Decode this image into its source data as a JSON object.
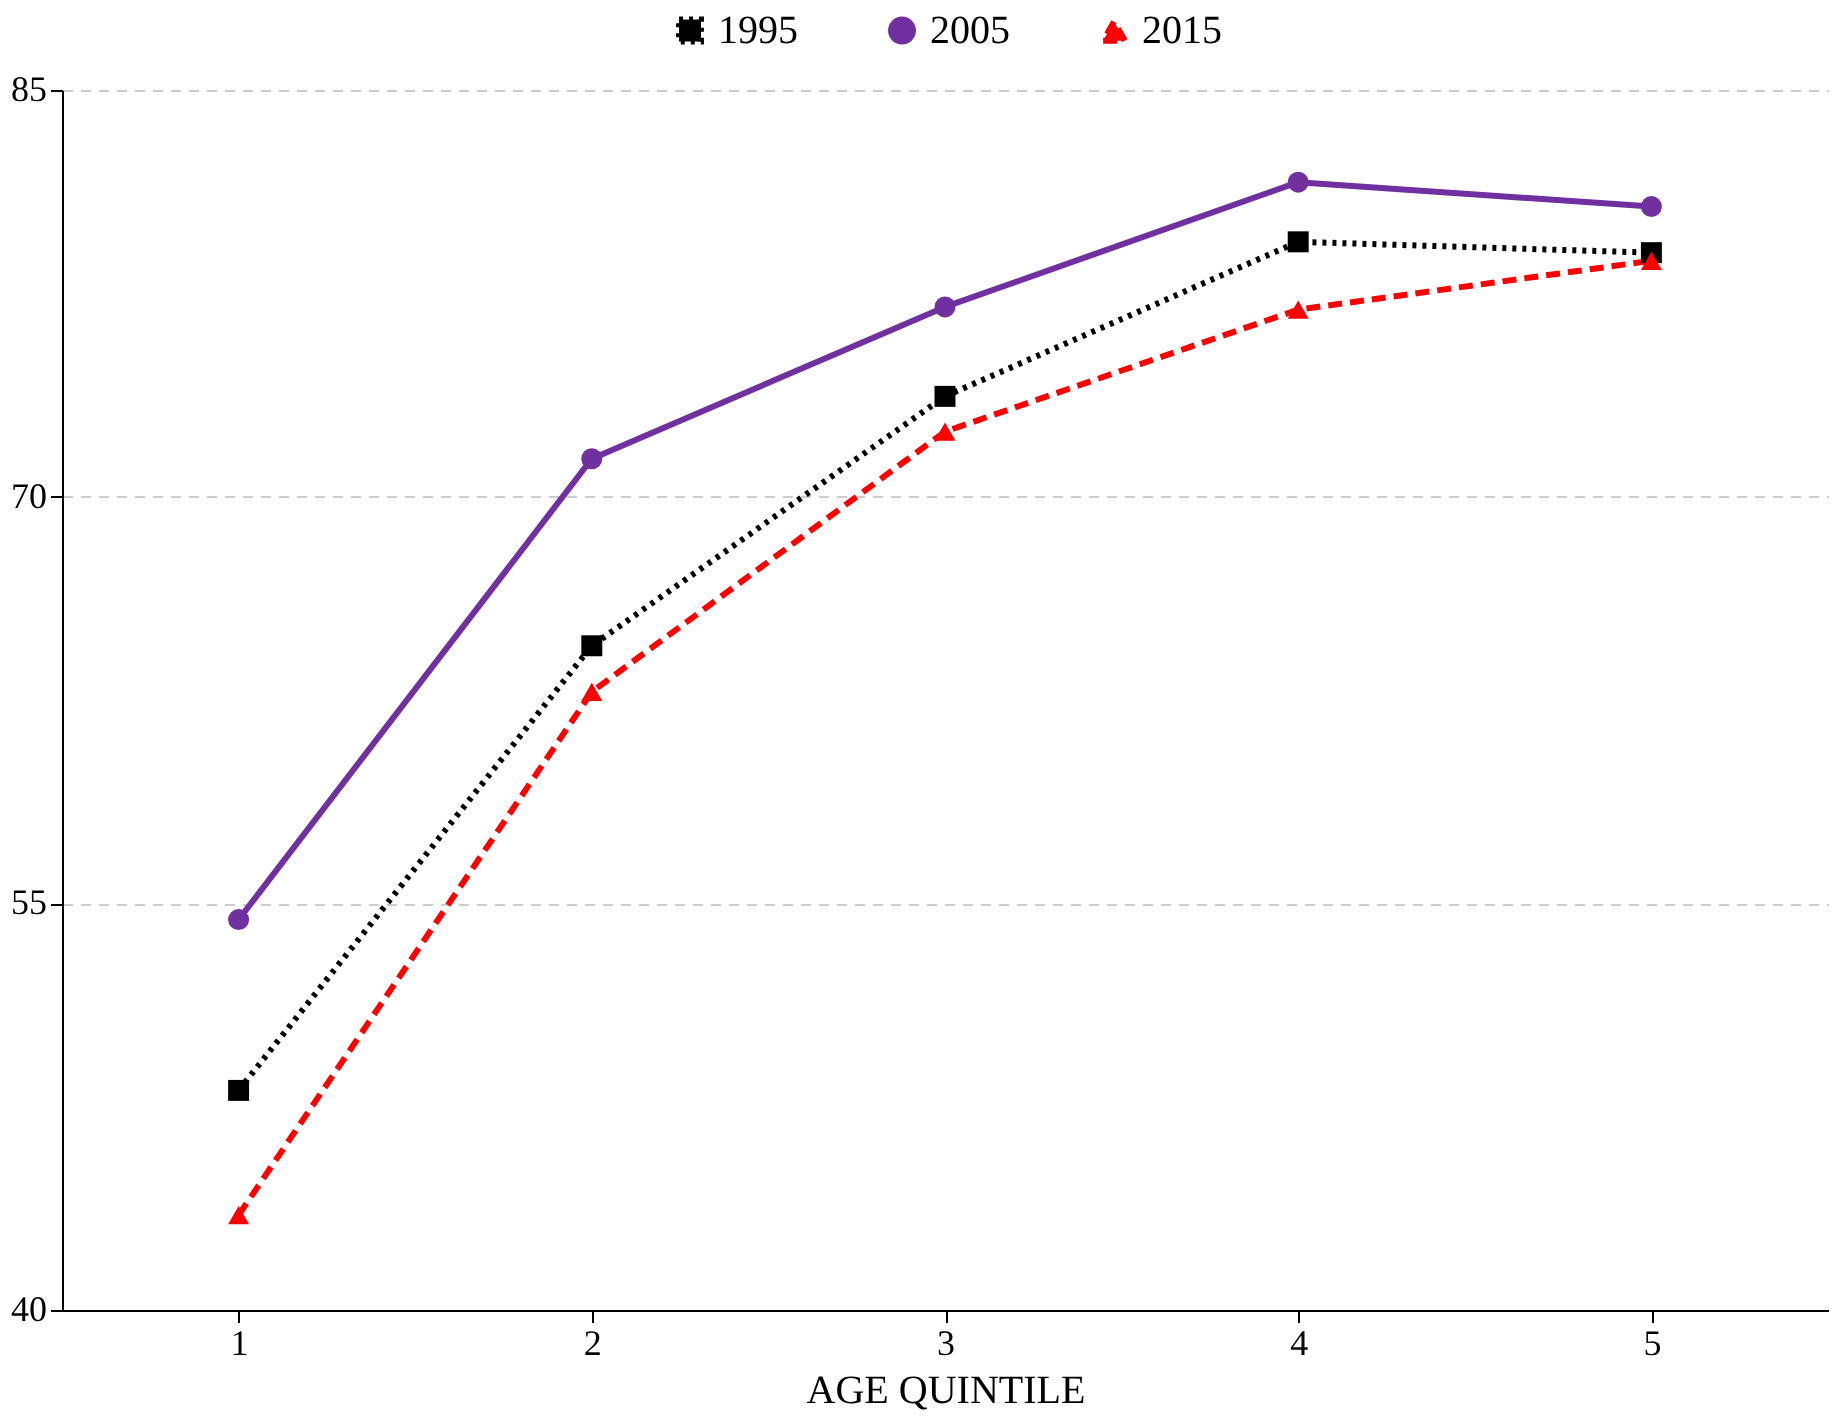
{
  "chart_data": {
    "type": "line",
    "xlabel": "AGE QUINTILE",
    "categories": [
      "1",
      "2",
      "3",
      "4",
      "5"
    ],
    "series": [
      {
        "name": "1995",
        "color": "#000000",
        "marker": "square",
        "line_style": "dotted",
        "values": [
          48.1,
          64.5,
          73.7,
          79.4,
          79.0
        ]
      },
      {
        "name": "2005",
        "color": "#7030a0",
        "marker": "circle",
        "line_style": "solid",
        "values": [
          54.4,
          71.4,
          77.0,
          81.6,
          80.7
        ]
      },
      {
        "name": "2015",
        "color": "#ff0000",
        "marker": "triangle",
        "line_style": "dashed",
        "values": [
          43.5,
          62.8,
          72.4,
          76.9,
          78.7
        ]
      }
    ],
    "ylim": [
      40,
      85
    ],
    "yticks": [
      40,
      55,
      70,
      85
    ],
    "grid": "y",
    "legend": "top"
  }
}
